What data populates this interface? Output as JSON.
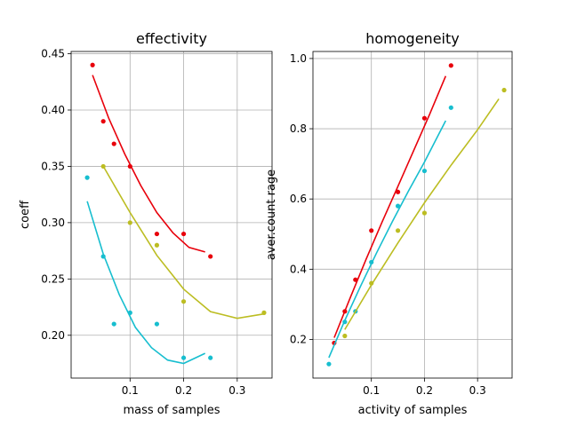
{
  "chart_data": [
    {
      "type": "scatter",
      "title": "effectivity",
      "xlabel": "mass of samples",
      "ylabel": "coeff",
      "xlim": [
        -0.01,
        0.365
      ],
      "ylim": [
        0.162,
        0.452
      ],
      "xticks": [
        0.1,
        0.2,
        0.3
      ],
      "xtick_labels": [
        "0.1",
        "0.2",
        "0.3"
      ],
      "yticks": [
        0.2,
        0.25,
        0.3,
        0.35,
        0.4,
        0.45
      ],
      "ytick_labels": [
        "0.20",
        "0.25",
        "0.30",
        "0.35",
        "0.40",
        "0.45"
      ],
      "grid": true,
      "series": [
        {
          "color": "#e8000b",
          "x": [
            0.03,
            0.05,
            0.07,
            0.1,
            0.15,
            0.2,
            0.25
          ],
          "y": [
            0.44,
            0.39,
            0.37,
            0.35,
            0.29,
            0.29,
            0.27
          ],
          "fit_x": [
            0.03,
            0.06,
            0.09,
            0.12,
            0.15,
            0.18,
            0.21,
            0.24
          ],
          "fit_y": [
            0.431,
            0.393,
            0.361,
            0.333,
            0.309,
            0.291,
            0.278,
            0.274
          ]
        },
        {
          "color": "#bcbd22",
          "x": [
            0.05,
            0.1,
            0.15,
            0.2,
            0.35
          ],
          "y": [
            0.35,
            0.3,
            0.28,
            0.23,
            0.22
          ],
          "fit_x": [
            0.05,
            0.1,
            0.15,
            0.2,
            0.25,
            0.3,
            0.35
          ],
          "fit_y": [
            0.35,
            0.309,
            0.271,
            0.241,
            0.221,
            0.215,
            0.219
          ]
        },
        {
          "color": "#17becf",
          "x": [
            0.02,
            0.05,
            0.07,
            0.1,
            0.15,
            0.2,
            0.25
          ],
          "y": [
            0.34,
            0.27,
            0.21,
            0.22,
            0.21,
            0.18,
            0.18
          ],
          "fit_x": [
            0.02,
            0.05,
            0.08,
            0.11,
            0.14,
            0.17,
            0.2,
            0.24
          ],
          "fit_y": [
            0.319,
            0.272,
            0.236,
            0.207,
            0.189,
            0.178,
            0.175,
            0.184
          ]
        }
      ]
    },
    {
      "type": "scatter",
      "title": "homogeneity",
      "xlabel": "activity of samples",
      "ylabel": "aver.count rage",
      "xlim": [
        -0.01,
        0.365
      ],
      "ylim": [
        0.09,
        1.02
      ],
      "xticks": [
        0.1,
        0.2,
        0.3
      ],
      "xtick_labels": [
        "0.1",
        "0.2",
        "0.3"
      ],
      "yticks": [
        0.2,
        0.4,
        0.6,
        0.8,
        1.0
      ],
      "ytick_labels": [
        "0.2",
        "0.4",
        "0.6",
        "0.8",
        "1.0"
      ],
      "grid": true,
      "series": [
        {
          "color": "#e8000b",
          "x": [
            0.03,
            0.05,
            0.07,
            0.1,
            0.15,
            0.2,
            0.25
          ],
          "y": [
            0.19,
            0.28,
            0.37,
            0.51,
            0.62,
            0.83,
            0.98
          ],
          "fit_x": [
            0.03,
            0.06,
            0.09,
            0.12,
            0.15,
            0.18,
            0.21,
            0.24
          ],
          "fit_y": [
            0.205,
            0.318,
            0.428,
            0.534,
            0.636,
            0.739,
            0.842,
            0.95
          ]
        },
        {
          "color": "#17becf",
          "x": [
            0.02,
            0.05,
            0.07,
            0.1,
            0.15,
            0.2,
            0.25
          ],
          "y": [
            0.13,
            0.25,
            0.28,
            0.42,
            0.58,
            0.68,
            0.86
          ],
          "fit_x": [
            0.02,
            0.05,
            0.08,
            0.11,
            0.14,
            0.17,
            0.2,
            0.24
          ],
          "fit_y": [
            0.148,
            0.254,
            0.353,
            0.447,
            0.537,
            0.623,
            0.705,
            0.823
          ]
        },
        {
          "color": "#bcbd22",
          "x": [
            0.05,
            0.1,
            0.15,
            0.2,
            0.35
          ],
          "y": [
            0.21,
            0.36,
            0.51,
            0.56,
            0.91
          ],
          "fit_x": [
            0.05,
            0.1,
            0.15,
            0.2,
            0.25,
            0.3,
            0.34
          ],
          "fit_y": [
            0.228,
            0.355,
            0.475,
            0.589,
            0.696,
            0.797,
            0.885
          ]
        }
      ]
    }
  ]
}
